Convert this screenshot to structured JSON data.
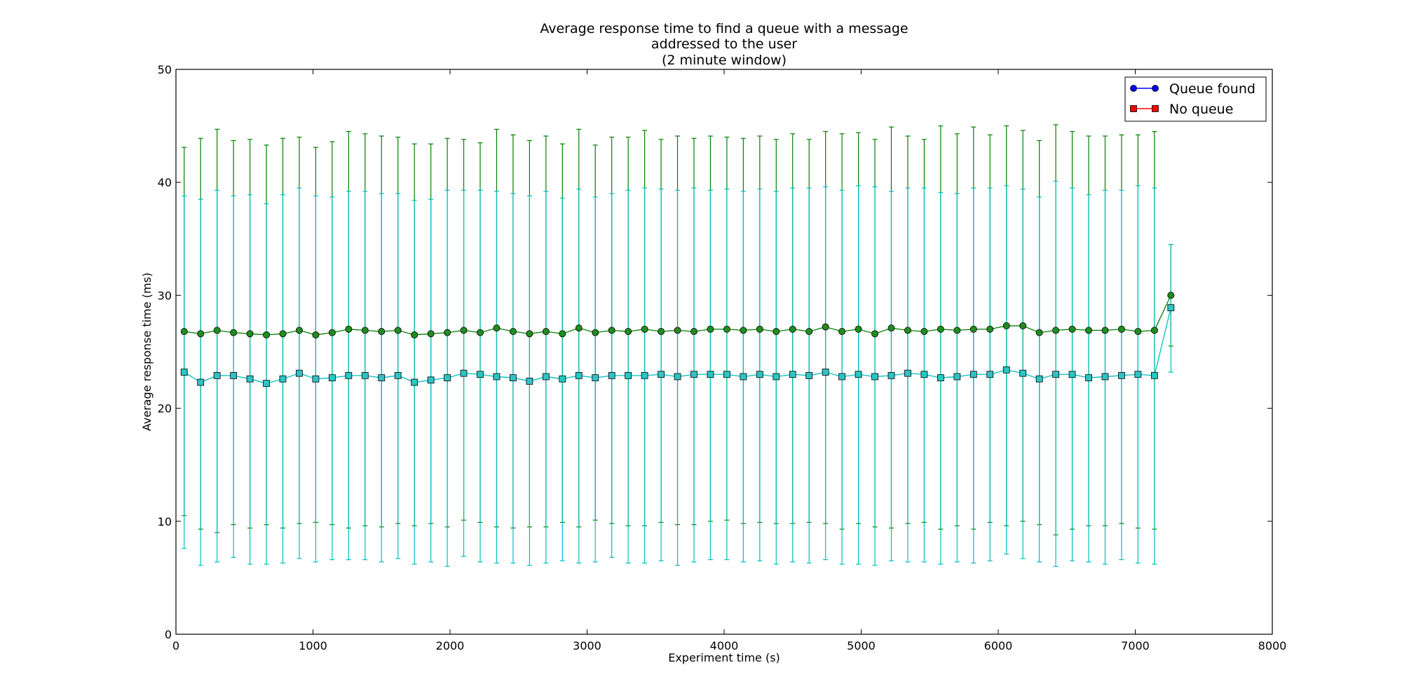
{
  "chart_data": {
    "type": "line",
    "title": [
      "Average response time to find a queue with a message",
      "addressed to the user",
      "(2 minute window)"
    ],
    "xlabel": "Experiment time (s)",
    "ylabel": "Average response time (ms)",
    "xlim": [
      0,
      8000
    ],
    "ylim": [
      0,
      50
    ],
    "xticks": [
      0,
      1000,
      2000,
      3000,
      4000,
      5000,
      6000,
      7000,
      8000
    ],
    "yticks": [
      0,
      10,
      20,
      30,
      40,
      50
    ],
    "grid": false,
    "legend_position": "top-right",
    "legend": [
      {
        "label": "Queue found",
        "color": "#0000ff",
        "marker": "circle"
      },
      {
        "label": "No queue",
        "color": "#ff0000",
        "marker": "square"
      }
    ],
    "x": [
      60,
      180,
      300,
      420,
      540,
      660,
      780,
      900,
      1020,
      1140,
      1260,
      1380,
      1500,
      1620,
      1740,
      1860,
      1980,
      2100,
      2220,
      2340,
      2460,
      2580,
      2700,
      2820,
      2940,
      3060,
      3180,
      3300,
      3420,
      3540,
      3660,
      3780,
      3900,
      4020,
      4140,
      4260,
      4380,
      4500,
      4620,
      4740,
      4860,
      4980,
      5100,
      5220,
      5340,
      5460,
      5580,
      5700,
      5820,
      5940,
      6060,
      6180,
      6300,
      6420,
      6540,
      6660,
      6780,
      6900,
      7020,
      7140,
      7260
    ],
    "series": [
      {
        "color": "#008000",
        "fill": "#228b22",
        "marker": "circle",
        "values": [
          26.8,
          26.6,
          26.9,
          26.7,
          26.6,
          26.5,
          26.6,
          26.9,
          26.5,
          26.7,
          27.0,
          26.9,
          26.8,
          26.9,
          26.5,
          26.6,
          26.7,
          26.9,
          26.7,
          27.1,
          26.8,
          26.6,
          26.8,
          26.6,
          27.1,
          26.7,
          26.9,
          26.8,
          27.0,
          26.8,
          26.9,
          26.8,
          27.0,
          27.0,
          26.9,
          27.0,
          26.8,
          27.0,
          26.8,
          27.2,
          26.8,
          27.0,
          26.6,
          27.1,
          26.9,
          26.8,
          27.0,
          26.9,
          27.0,
          27.0,
          27.3,
          27.3,
          26.7,
          26.9,
          27.0,
          26.9,
          26.9,
          27.0,
          26.8,
          26.9,
          30.0
        ],
        "err_upper": [
          43.1,
          43.9,
          44.7,
          43.7,
          43.8,
          43.3,
          43.9,
          44.0,
          43.1,
          43.6,
          44.5,
          44.3,
          44.1,
          44.0,
          43.4,
          43.4,
          43.9,
          43.8,
          43.5,
          44.7,
          44.2,
          43.7,
          44.1,
          43.4,
          44.7,
          43.3,
          44.0,
          44.0,
          44.6,
          43.8,
          44.1,
          43.9,
          44.1,
          44.0,
          43.9,
          44.1,
          43.8,
          44.3,
          43.8,
          44.5,
          44.3,
          44.4,
          43.8,
          44.9,
          44.1,
          43.8,
          45.0,
          44.3,
          44.9,
          44.2,
          45.0,
          44.6,
          43.7,
          45.1,
          44.5,
          44.1,
          44.1,
          44.2,
          44.2,
          44.5,
          34.5
        ],
        "err_lower": [
          10.5,
          9.3,
          9.0,
          9.7,
          9.4,
          9.7,
          9.4,
          9.8,
          9.9,
          9.7,
          9.4,
          9.6,
          9.5,
          9.8,
          9.6,
          9.8,
          9.5,
          10.1,
          9.9,
          9.5,
          9.4,
          9.5,
          9.5,
          9.9,
          9.5,
          10.1,
          9.8,
          9.6,
          9.6,
          9.9,
          9.7,
          9.7,
          10.0,
          10.1,
          9.8,
          9.9,
          9.8,
          9.8,
          9.9,
          9.8,
          9.3,
          9.8,
          9.5,
          9.4,
          9.8,
          9.9,
          9.3,
          9.6,
          9.3,
          9.9,
          9.6,
          10.0,
          9.7,
          8.8,
          9.3,
          9.6,
          9.6,
          9.8,
          9.4,
          9.3,
          25.5
        ]
      },
      {
        "color": "#00bfbf",
        "fill": "#2ec4c4",
        "marker": "square",
        "values": [
          23.2,
          22.3,
          22.9,
          22.9,
          22.6,
          22.2,
          22.6,
          23.1,
          22.6,
          22.7,
          22.9,
          22.9,
          22.7,
          22.9,
          22.3,
          22.5,
          22.7,
          23.1,
          23.0,
          22.8,
          22.7,
          22.4,
          22.8,
          22.6,
          22.9,
          22.7,
          22.9,
          22.9,
          22.9,
          23.0,
          22.8,
          23.0,
          23.0,
          23.0,
          22.8,
          23.0,
          22.8,
          23.0,
          22.9,
          23.2,
          22.8,
          23.0,
          22.8,
          22.9,
          23.1,
          23.0,
          22.7,
          22.8,
          23.0,
          23.0,
          23.4,
          23.1,
          22.6,
          23.0,
          23.0,
          22.7,
          22.8,
          22.9,
          23.0,
          22.9,
          28.9
        ],
        "err_upper": [
          38.8,
          38.5,
          39.3,
          38.8,
          38.9,
          38.1,
          38.9,
          39.5,
          38.8,
          38.7,
          39.2,
          39.2,
          39.0,
          39.0,
          38.4,
          38.5,
          39.3,
          39.3,
          39.3,
          39.2,
          39.0,
          38.8,
          39.2,
          38.6,
          39.4,
          38.7,
          39.0,
          39.3,
          39.5,
          39.4,
          39.3,
          39.5,
          39.3,
          39.4,
          39.2,
          39.4,
          39.2,
          39.5,
          39.5,
          39.6,
          39.3,
          39.7,
          39.6,
          39.2,
          39.5,
          39.5,
          39.1,
          39.0,
          39.5,
          39.5,
          39.7,
          39.4,
          38.7,
          40.1,
          39.5,
          38.9,
          39.3,
          39.3,
          39.7,
          39.5,
          34.5
        ],
        "err_lower": [
          7.6,
          6.1,
          6.4,
          6.8,
          6.2,
          6.2,
          6.3,
          6.7,
          6.4,
          6.6,
          6.6,
          6.6,
          6.4,
          6.7,
          6.2,
          6.4,
          6.0,
          6.9,
          6.4,
          6.3,
          6.3,
          6.1,
          6.3,
          6.5,
          6.3,
          6.4,
          6.8,
          6.3,
          6.3,
          6.5,
          6.1,
          6.4,
          6.6,
          6.6,
          6.4,
          6.5,
          6.2,
          6.4,
          6.3,
          6.6,
          6.2,
          6.2,
          6.1,
          6.5,
          6.4,
          6.4,
          6.2,
          6.4,
          6.3,
          6.5,
          7.1,
          6.7,
          6.4,
          6.0,
          6.5,
          6.4,
          6.2,
          6.6,
          6.3,
          6.2,
          23.2
        ]
      }
    ]
  }
}
